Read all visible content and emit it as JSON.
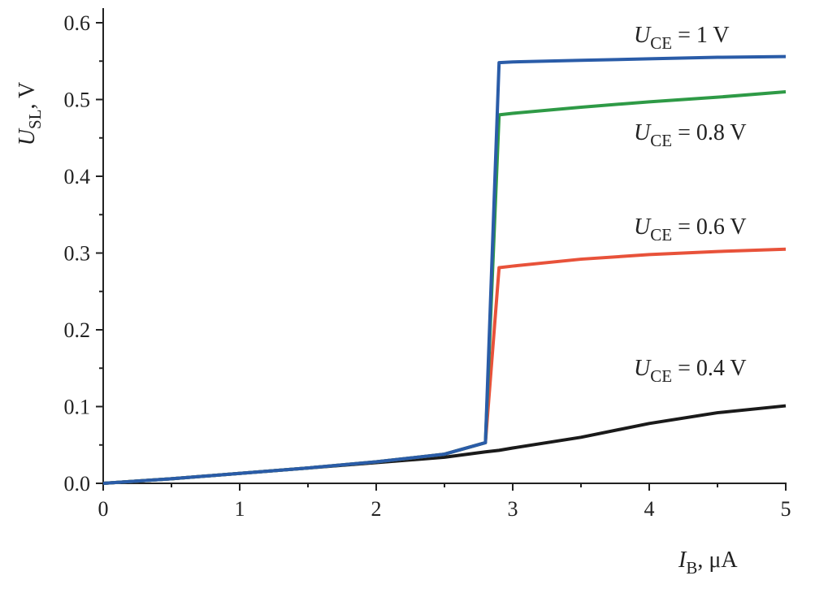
{
  "chart_data": {
    "type": "line",
    "xlabel": [
      "I",
      "B",
      ", μA"
    ],
    "ylabel": [
      "U",
      "SL",
      ", V"
    ],
    "x": [
      0,
      0.5,
      1,
      1.5,
      2,
      2.5,
      2.8,
      2.9,
      3,
      3.5,
      4,
      4.5,
      5
    ],
    "series": [
      {
        "name": [
          "U",
          "CE",
          " = 0.4 V"
        ],
        "color": "#1a1a1a",
        "values": [
          0,
          0.006,
          0.013,
          0.02,
          0.027,
          0.034,
          0.041,
          0.043,
          0.046,
          0.06,
          0.078,
          0.092,
          0.101
        ]
      },
      {
        "name": [
          "U",
          "CE",
          " = 0.6 V"
        ],
        "color": "#e8523a",
        "values": [
          0,
          0.006,
          0.013,
          0.02,
          0.028,
          0.038,
          0.053,
          0.281,
          0.283,
          0.292,
          0.298,
          0.302,
          0.305
        ]
      },
      {
        "name": [
          "U",
          "CE",
          " = 0.8 V"
        ],
        "color": "#2e9a46",
        "values": [
          0,
          0.006,
          0.013,
          0.02,
          0.028,
          0.038,
          0.053,
          0.48,
          0.482,
          0.49,
          0.497,
          0.503,
          0.51
        ]
      },
      {
        "name": [
          "U",
          "CE",
          " = 1 V"
        ],
        "color": "#2a5ca8",
        "values": [
          0,
          0.006,
          0.013,
          0.02,
          0.028,
          0.038,
          0.053,
          0.548,
          0.549,
          0.551,
          0.553,
          0.555,
          0.556
        ]
      }
    ],
    "xlim": [
      0,
      5
    ],
    "xticks": [
      0,
      1,
      2,
      3,
      4,
      5
    ],
    "ylim": [
      0,
      0.6
    ],
    "yticks": [
      {
        "value": 0,
        "label": "0.0"
      },
      0.1,
      0.2,
      0.3,
      0.4,
      0.5,
      0.6
    ],
    "grid": false
  }
}
